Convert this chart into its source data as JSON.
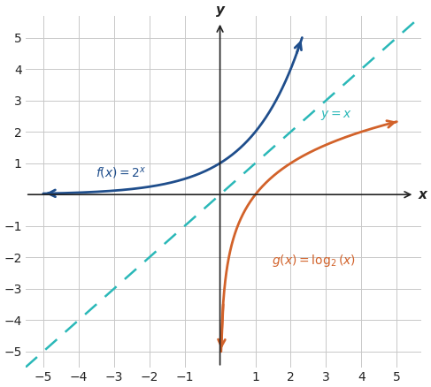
{
  "title": "",
  "xlabel": "x",
  "ylabel": "y",
  "xlim": [
    -5.5,
    5.7
  ],
  "ylim": [
    -5.5,
    5.7
  ],
  "xticks": [
    -5,
    -4,
    -3,
    -2,
    -1,
    1,
    2,
    3,
    4,
    5
  ],
  "yticks": [
    -5,
    -4,
    -3,
    -2,
    -1,
    1,
    2,
    3,
    4,
    5
  ],
  "f_color": "#1f4e8c",
  "g_color": "#d2622a",
  "sym_color": "#2ab8b8",
  "background_color": "#ffffff",
  "grid_color": "#c8c8c8",
  "axis_color": "#222222",
  "figsize": [
    4.87,
    4.38
  ],
  "dpi": 100
}
